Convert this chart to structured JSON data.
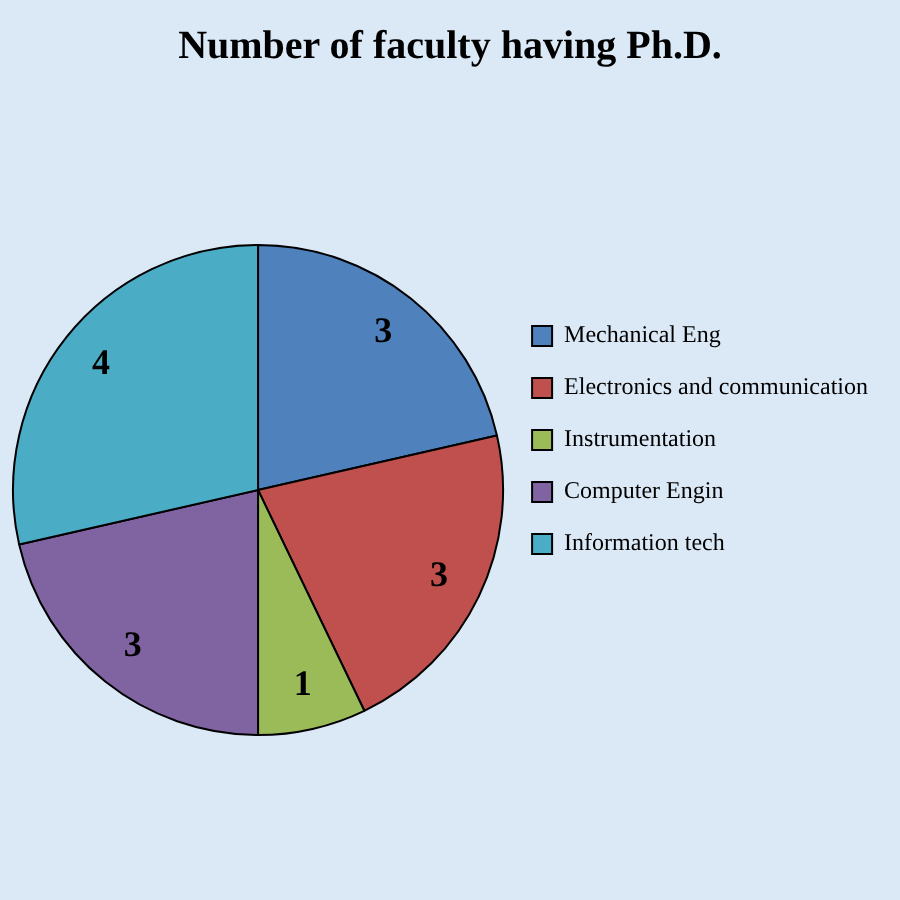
{
  "chart_data": {
    "type": "pie",
    "title": "Number of faculty having Ph.D.",
    "categories": [
      "Mechanical Eng",
      "Electronics and communication",
      "Instrumentation",
      "Computer Engin",
      "Information tech"
    ],
    "values": [
      3,
      3,
      1,
      3,
      4
    ],
    "colors": [
      "#4f81bd",
      "#c0504d",
      "#9bbb59",
      "#8064a2",
      "#4bacc6"
    ],
    "data_labels": true,
    "legend": "right"
  }
}
